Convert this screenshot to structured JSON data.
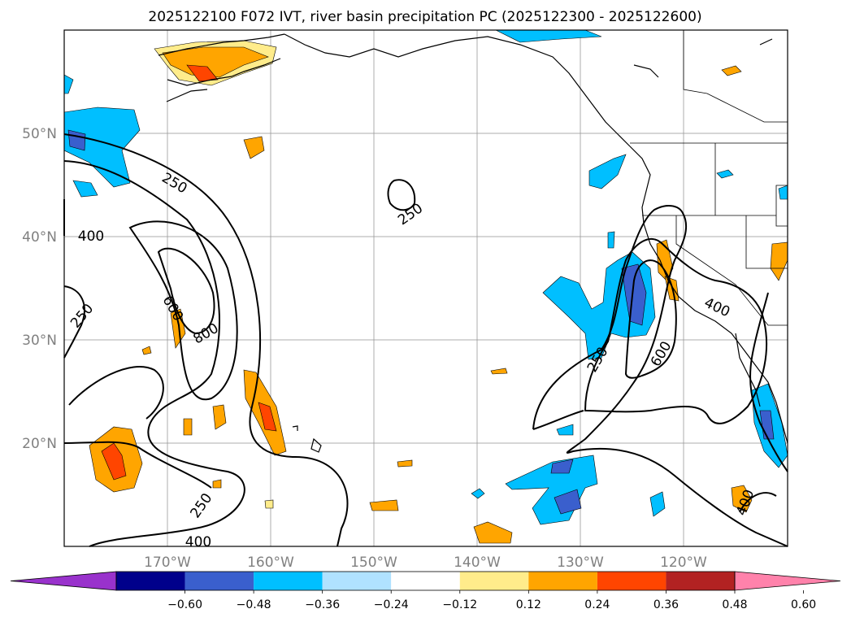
{
  "chart_data": {
    "type": "filled-contour map",
    "title": "2025122100 F072 IVT, river basin precipitation PC (2025122300 - 2025122600)",
    "x_ticks": [
      "170°W",
      "160°W",
      "150°W",
      "140°W",
      "130°W",
      "120°W"
    ],
    "y_ticks": [
      "50°N",
      "40°N",
      "30°N",
      "20°N"
    ],
    "lon_range": [
      -180,
      -110
    ],
    "lat_range": [
      10,
      60
    ],
    "grid": true,
    "ivt_contour_labels": [
      "250",
      "250",
      "250",
      "250",
      "250",
      "400",
      "400",
      "400",
      "400",
      "600",
      "600",
      "800"
    ],
    "colorbar": {
      "orientation": "horizontal",
      "extend": "both",
      "ticks": [
        "−0.60",
        "−0.48",
        "−0.36",
        "−0.24",
        "−0.12",
        "0.12",
        "0.24",
        "0.36",
        "0.48",
        "0.60"
      ],
      "colors": [
        "#9932cc",
        "#00008b",
        "#3a5fcd",
        "#00bfff",
        "#b0e2ff",
        "#ffffff",
        "#ffec8b",
        "#ffa500",
        "#ff4500",
        "#b22222",
        "#ff82ab"
      ]
    }
  }
}
